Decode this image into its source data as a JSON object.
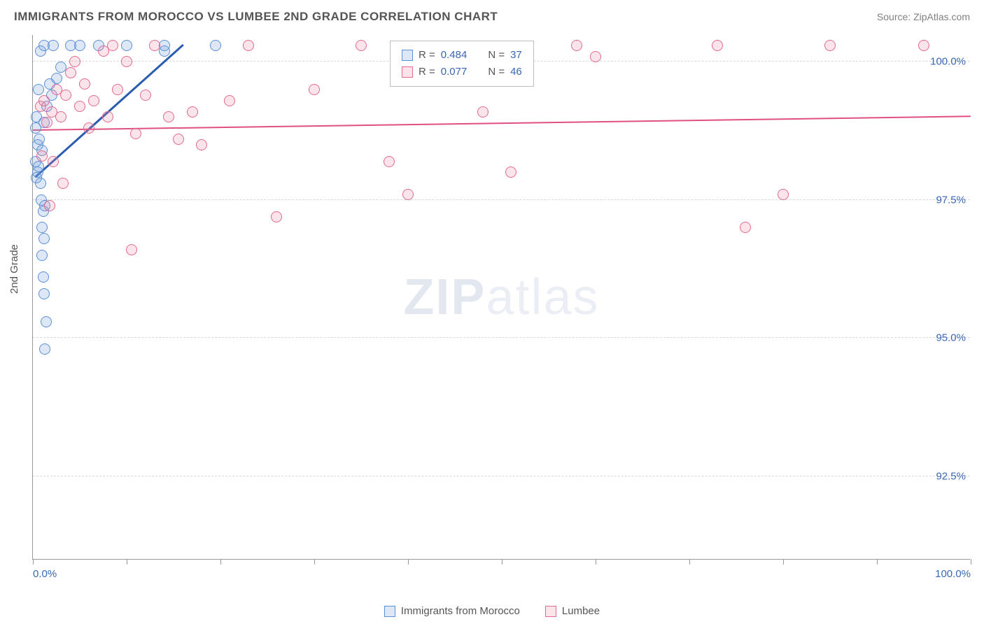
{
  "header": {
    "title": "IMMIGRANTS FROM MOROCCO VS LUMBEE 2ND GRADE CORRELATION CHART",
    "source": "Source: ZipAtlas.com"
  },
  "chart": {
    "type": "scatter",
    "ylabel": "2nd Grade",
    "xlim": [
      0,
      100
    ],
    "ylim": [
      91,
      100.5
    ],
    "xtick_positions": [
      0,
      10,
      20,
      30,
      40,
      50,
      60,
      70,
      80,
      90,
      100
    ],
    "xtick_labels": {
      "0": "0.0%",
      "100": "100.0%"
    },
    "ytick_positions": [
      92.5,
      95.0,
      97.5,
      100.0
    ],
    "ytick_labels": [
      "92.5%",
      "95.0%",
      "97.5%",
      "100.0%"
    ],
    "background_color": "#ffffff",
    "grid_color": "#d8d8d8",
    "axis_color": "#999999",
    "marker_radius": 8,
    "marker_stroke_width": 1.5,
    "series": [
      {
        "name": "Immigrants from Morocco",
        "fill": "rgba(120,160,220,0.25)",
        "stroke": "#5b8fd6",
        "R": "0.484",
        "N": "37",
        "trend": {
          "x1": 0.2,
          "y1": 97.9,
          "x2": 16,
          "y2": 100.3,
          "color": "#2a5db0",
          "width": 2.5
        },
        "points": [
          [
            0.3,
            98.2
          ],
          [
            0.4,
            97.9
          ],
          [
            0.5,
            98.0
          ],
          [
            0.6,
            98.1
          ],
          [
            0.8,
            97.8
          ],
          [
            0.5,
            98.5
          ],
          [
            0.7,
            98.6
          ],
          [
            1.0,
            98.4
          ],
          [
            1.2,
            98.9
          ],
          [
            0.4,
            99.0
          ],
          [
            1.5,
            99.2
          ],
          [
            2.0,
            99.4
          ],
          [
            0.6,
            99.5
          ],
          [
            1.8,
            99.6
          ],
          [
            2.5,
            99.7
          ],
          [
            3.0,
            99.9
          ],
          [
            0.8,
            100.2
          ],
          [
            1.2,
            100.3
          ],
          [
            2.2,
            100.3
          ],
          [
            4.0,
            100.3
          ],
          [
            5.0,
            100.3
          ],
          [
            7.0,
            100.3
          ],
          [
            10.0,
            100.3
          ],
          [
            14.0,
            100.2
          ],
          [
            19.5,
            100.3
          ],
          [
            14.0,
            100.3
          ],
          [
            0.9,
            97.5
          ],
          [
            1.1,
            97.3
          ],
          [
            1.3,
            97.4
          ],
          [
            1.0,
            97.0
          ],
          [
            1.2,
            96.8
          ],
          [
            1.0,
            96.5
          ],
          [
            1.1,
            96.1
          ],
          [
            1.2,
            95.8
          ],
          [
            1.4,
            95.3
          ],
          [
            1.3,
            94.8
          ],
          [
            0.3,
            98.8
          ]
        ]
      },
      {
        "name": "Lumbee",
        "fill": "rgba(235,130,160,0.22)",
        "stroke": "#e06b8f",
        "R": "0.077",
        "N": "46",
        "trend": {
          "x1": 0,
          "y1": 98.75,
          "x2": 100,
          "y2": 99.0,
          "color": "#e05080",
          "width": 2
        },
        "points": [
          [
            0.8,
            99.2
          ],
          [
            1.2,
            99.3
          ],
          [
            1.5,
            98.9
          ],
          [
            2.0,
            99.1
          ],
          [
            2.5,
            99.5
          ],
          [
            3.0,
            99.0
          ],
          [
            3.5,
            99.4
          ],
          [
            4.0,
            99.8
          ],
          [
            4.5,
            100.0
          ],
          [
            5.0,
            99.2
          ],
          [
            5.5,
            99.6
          ],
          [
            6.0,
            98.8
          ],
          [
            6.5,
            99.3
          ],
          [
            7.5,
            100.2
          ],
          [
            8.0,
            99.0
          ],
          [
            8.5,
            100.3
          ],
          [
            9.0,
            99.5
          ],
          [
            10.0,
            100.0
          ],
          [
            11.0,
            98.7
          ],
          [
            12.0,
            99.4
          ],
          [
            13.0,
            100.3
          ],
          [
            14.5,
            99.0
          ],
          [
            15.5,
            98.6
          ],
          [
            17.0,
            99.1
          ],
          [
            18.0,
            98.5
          ],
          [
            21.0,
            99.3
          ],
          [
            23.0,
            100.3
          ],
          [
            26.0,
            97.2
          ],
          [
            30.0,
            99.5
          ],
          [
            35.0,
            100.3
          ],
          [
            38.0,
            98.2
          ],
          [
            40.0,
            97.6
          ],
          [
            48.0,
            99.1
          ],
          [
            51.0,
            98.0
          ],
          [
            58.0,
            100.3
          ],
          [
            60.0,
            100.1
          ],
          [
            73.0,
            100.3
          ],
          [
            76.0,
            97.0
          ],
          [
            80.0,
            97.6
          ],
          [
            85.0,
            100.3
          ],
          [
            95.0,
            100.3
          ],
          [
            3.2,
            97.8
          ],
          [
            1.0,
            98.3
          ],
          [
            2.2,
            98.2
          ],
          [
            10.5,
            96.6
          ],
          [
            1.8,
            97.4
          ]
        ]
      }
    ],
    "legend_box": {
      "swatch_size": 16,
      "R_label": "R =",
      "N_label": "N ="
    },
    "bottom_legend": {
      "s1": "Immigrants from Morocco",
      "s2": "Lumbee"
    },
    "watermark": {
      "bold": "ZIP",
      "light": "atlas"
    }
  }
}
